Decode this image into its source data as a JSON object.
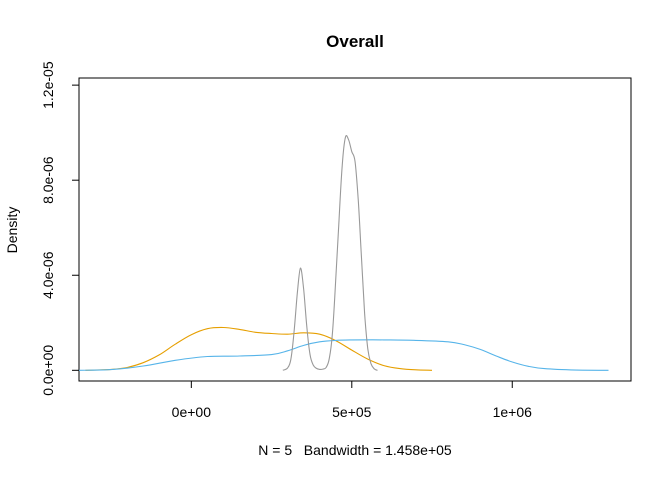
{
  "chart_data": {
    "type": "line",
    "title": "Overall",
    "ylabel": "Density",
    "xlabel": "N = 5   Bandwidth = 1.458e+05",
    "xlim": [
      -350000,
      1370000
    ],
    "ylim": [
      -4.5e-07,
      1.23e-05
    ],
    "xticks": [
      0,
      500000,
      1000000
    ],
    "xtick_labels": [
      "0e+00",
      "5e+05",
      "1e+06"
    ],
    "yticks": [
      0,
      4e-06,
      8e-06,
      1.2e-05
    ],
    "ytick_labels": [
      "0.0e+00",
      "4.0e-06",
      "8.0e-06",
      "1.2e-05"
    ],
    "grid": false,
    "series": [
      {
        "color": "#E69F00",
        "x": [
          -330000,
          -250000,
          -200000,
          -150000,
          -100000,
          -50000,
          0,
          50000,
          100000,
          150000,
          200000,
          250000,
          300000,
          350000,
          400000,
          450000,
          500000,
          550000,
          600000,
          650000,
          700000,
          750000
        ],
        "y": [
          0.0,
          4e-08,
          1.2e-07,
          3.2e-07,
          6.5e-07,
          1.1e-06,
          1.5e-06,
          1.75e-06,
          1.8e-06,
          1.72e-06,
          1.6e-06,
          1.55e-06,
          1.52e-06,
          1.58e-06,
          1.52e-06,
          1.25e-06,
          8.5e-07,
          4.7e-07,
          2e-07,
          7e-08,
          2e-08,
          0.0
        ]
      },
      {
        "color": "#56B4E9",
        "x": [
          -350000,
          -250000,
          -150000,
          -50000,
          50000,
          150000,
          250000,
          300000,
          350000,
          400000,
          450000,
          500000,
          600000,
          700000,
          800000,
          850000,
          900000,
          950000,
          1000000,
          1050000,
          1100000,
          1200000,
          1300000
        ],
        "y": [
          0.0,
          3e-08,
          1.8e-07,
          4.2e-07,
          5.8e-07,
          6e-07,
          6.6e-07,
          8.2e-07,
          1.05e-06,
          1.2e-06,
          1.26e-06,
          1.28e-06,
          1.28e-06,
          1.26e-06,
          1.2e-06,
          1.08e-06,
          8.8e-07,
          6e-07,
          3.5e-07,
          1.7e-07,
          7e-08,
          1e-08,
          0.0
        ]
      },
      {
        "color": "#999999",
        "x": [
          285000,
          300000,
          310000,
          320000,
          330000,
          340000,
          350000,
          360000,
          370000,
          380000,
          390000,
          400000,
          410000,
          420000,
          430000,
          440000,
          450000,
          460000,
          470000,
          480000,
          490000,
          500000,
          510000,
          520000,
          530000,
          540000,
          550000,
          560000,
          570000,
          580000
        ],
        "y": [
          0.0,
          1e-07,
          4.5e-07,
          1.6e-06,
          3.2e-06,
          4.3e-06,
          3.4e-06,
          1.8e-06,
          6.5e-07,
          2.2e-07,
          8e-08,
          4e-08,
          5e-08,
          1.2e-07,
          5e-07,
          1.6e-06,
          3.8e-06,
          6.3e-06,
          8.6e-06,
          9.8e-06,
          9.7e-06,
          9.2e-06,
          8.8e-06,
          7.2e-06,
          4.8e-06,
          2.4e-06,
          9e-07,
          2.8e-07,
          6e-08,
          0.0
        ]
      }
    ]
  }
}
